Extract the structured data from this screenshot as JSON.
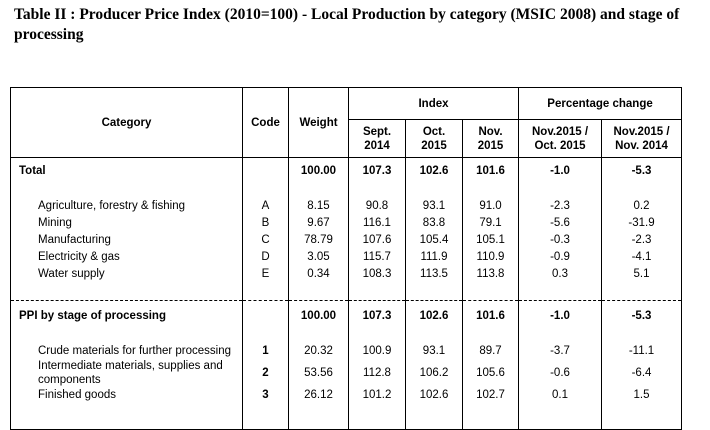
{
  "title": "Table II : Producer Price Index (2010=100) - Local Production by category (MSIC 2008) and stage of processing",
  "headers": {
    "category": "Category",
    "code": "Code",
    "weight": "Weight",
    "index": "Index",
    "pct_change": "Percentage change",
    "sept2014_a": "Sept.",
    "sept2014_b": "2014",
    "oct2015_a": "Oct.",
    "oct2015_b": "2015",
    "nov2015_a": "Nov.",
    "nov2015_b": "2015",
    "chg1_a": "Nov.2015 /",
    "chg1_b": "Oct. 2015",
    "chg2_a": "Nov.2015 /",
    "chg2_b": "Nov. 2014"
  },
  "total": {
    "category": "Total",
    "weight": "100.00",
    "sept": "107.3",
    "oct": "102.6",
    "nov": "101.6",
    "chg1": "-1.0",
    "chg2": "-5.3"
  },
  "categories": [
    {
      "category": "Agriculture, forestry & fishing",
      "code": "A",
      "weight": "8.15",
      "sept": "90.8",
      "oct": "93.1",
      "nov": "91.0",
      "chg1": "-2.3",
      "chg2": "0.2"
    },
    {
      "category": "Mining",
      "code": "B",
      "weight": "9.67",
      "sept": "116.1",
      "oct": "83.8",
      "nov": "79.1",
      "chg1": "-5.6",
      "chg2": "-31.9"
    },
    {
      "category": "Manufacturing",
      "code": "C",
      "weight": "78.79",
      "sept": "107.6",
      "oct": "105.4",
      "nov": "105.1",
      "chg1": "-0.3",
      "chg2": "-2.3"
    },
    {
      "category": "Electricity & gas",
      "code": "D",
      "weight": "3.05",
      "sept": "115.7",
      "oct": "111.9",
      "nov": "110.9",
      "chg1": "-0.9",
      "chg2": "-4.1"
    },
    {
      "category": "Water supply",
      "code": "E",
      "weight": "0.34",
      "sept": "108.3",
      "oct": "113.5",
      "nov": "113.8",
      "chg1": "0.3",
      "chg2": "5.1"
    }
  ],
  "stage_total": {
    "category": "PPI by stage of processing",
    "weight": "100.00",
    "sept": "107.3",
    "oct": "102.6",
    "nov": "101.6",
    "chg1": "-1.0",
    "chg2": "-5.3"
  },
  "stages": [
    {
      "category": "Crude materials for further processing",
      "code": "1",
      "weight": "20.32",
      "sept": "100.9",
      "oct": "93.1",
      "nov": "89.7",
      "chg1": "-3.7",
      "chg2": "-11.1"
    },
    {
      "category_a": "Intermediate materials, supplies and",
      "category_b": "components",
      "code": "2",
      "weight": "53.56",
      "sept": "112.8",
      "oct": "106.2",
      "nov": "105.6",
      "chg1": "-0.6",
      "chg2": "-6.4"
    },
    {
      "category": "Finished goods",
      "code": "3",
      "weight": "26.12",
      "sept": "101.2",
      "oct": "102.6",
      "nov": "102.7",
      "chg1": "0.1",
      "chg2": "1.5"
    }
  ]
}
